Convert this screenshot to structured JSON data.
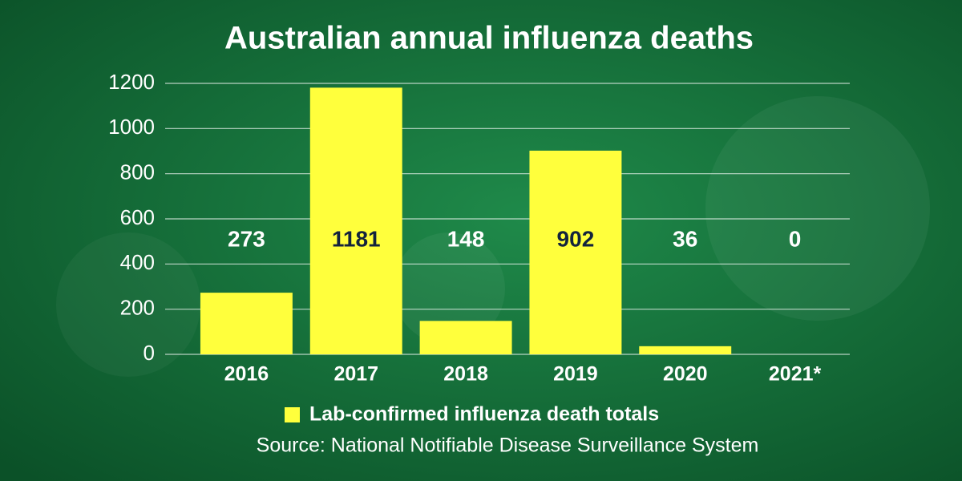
{
  "chart_data": {
    "type": "bar",
    "title": "Australian annual influenza deaths",
    "categories": [
      "2016",
      "2017",
      "2018",
      "2019",
      "2020",
      "2021*"
    ],
    "series": [
      {
        "name": "Lab-confirmed influenza death totals",
        "color": "#ffff3c",
        "values": [
          273,
          1181,
          148,
          902,
          36,
          0
        ]
      }
    ],
    "ylim": [
      0,
      1200
    ],
    "yticks": [
      0,
      200,
      400,
      600,
      800,
      1000,
      1200
    ],
    "grid": true,
    "source": "Source: National Notifiable Disease Surveillance System"
  }
}
